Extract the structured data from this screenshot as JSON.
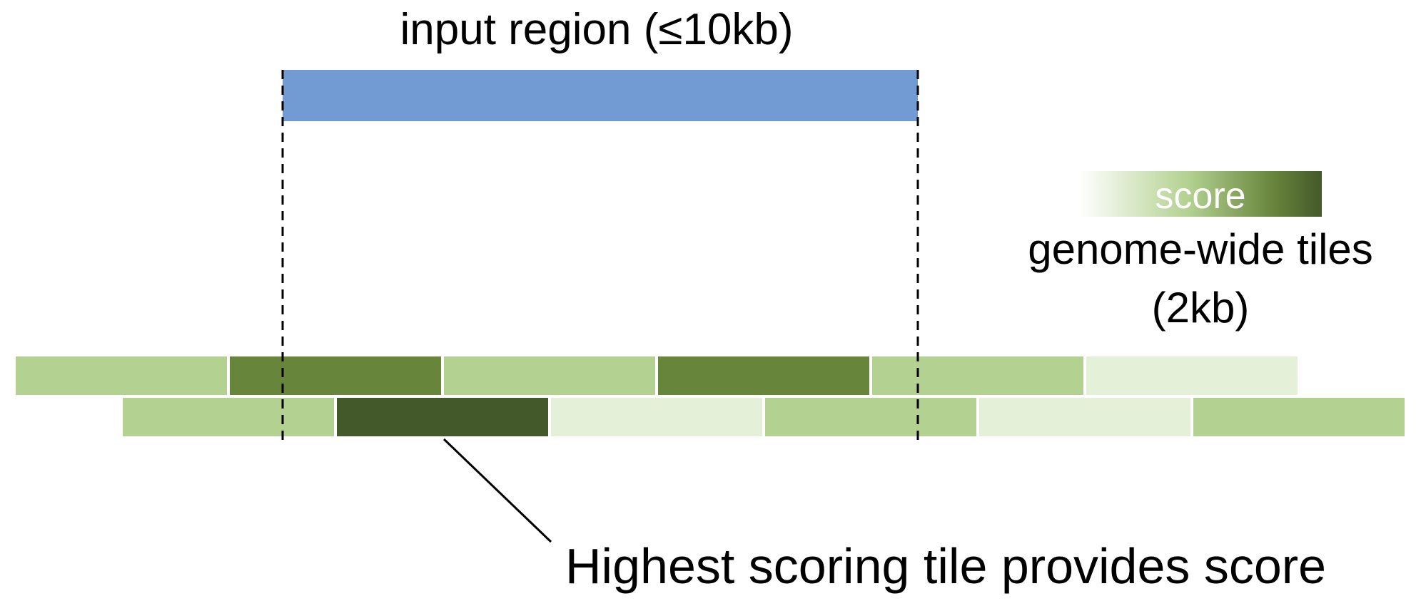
{
  "input_region": {
    "label": "input region (≤10kb)",
    "color": "#719bd2"
  },
  "legend": {
    "bar_label": "score",
    "title_line1": "genome-wide tiles",
    "title_line2": "(2kb)",
    "gradient_colors": [
      "#ffffff",
      "#b3d190",
      "#68853c",
      "#43592a"
    ]
  },
  "score_colors": {
    "lightest": "#e4f0d8",
    "light": "#b3d190",
    "medium": "#68853c",
    "dark": "#43592a"
  },
  "tile_rows": [
    [
      "light",
      "medium",
      "light",
      "medium",
      "light",
      "lightest"
    ],
    [
      "light",
      "dark",
      "lightest",
      "light",
      "lightest",
      "light"
    ]
  ],
  "annotation": {
    "label": "Highest scoring tile provides score"
  },
  "line_color": "#000000"
}
